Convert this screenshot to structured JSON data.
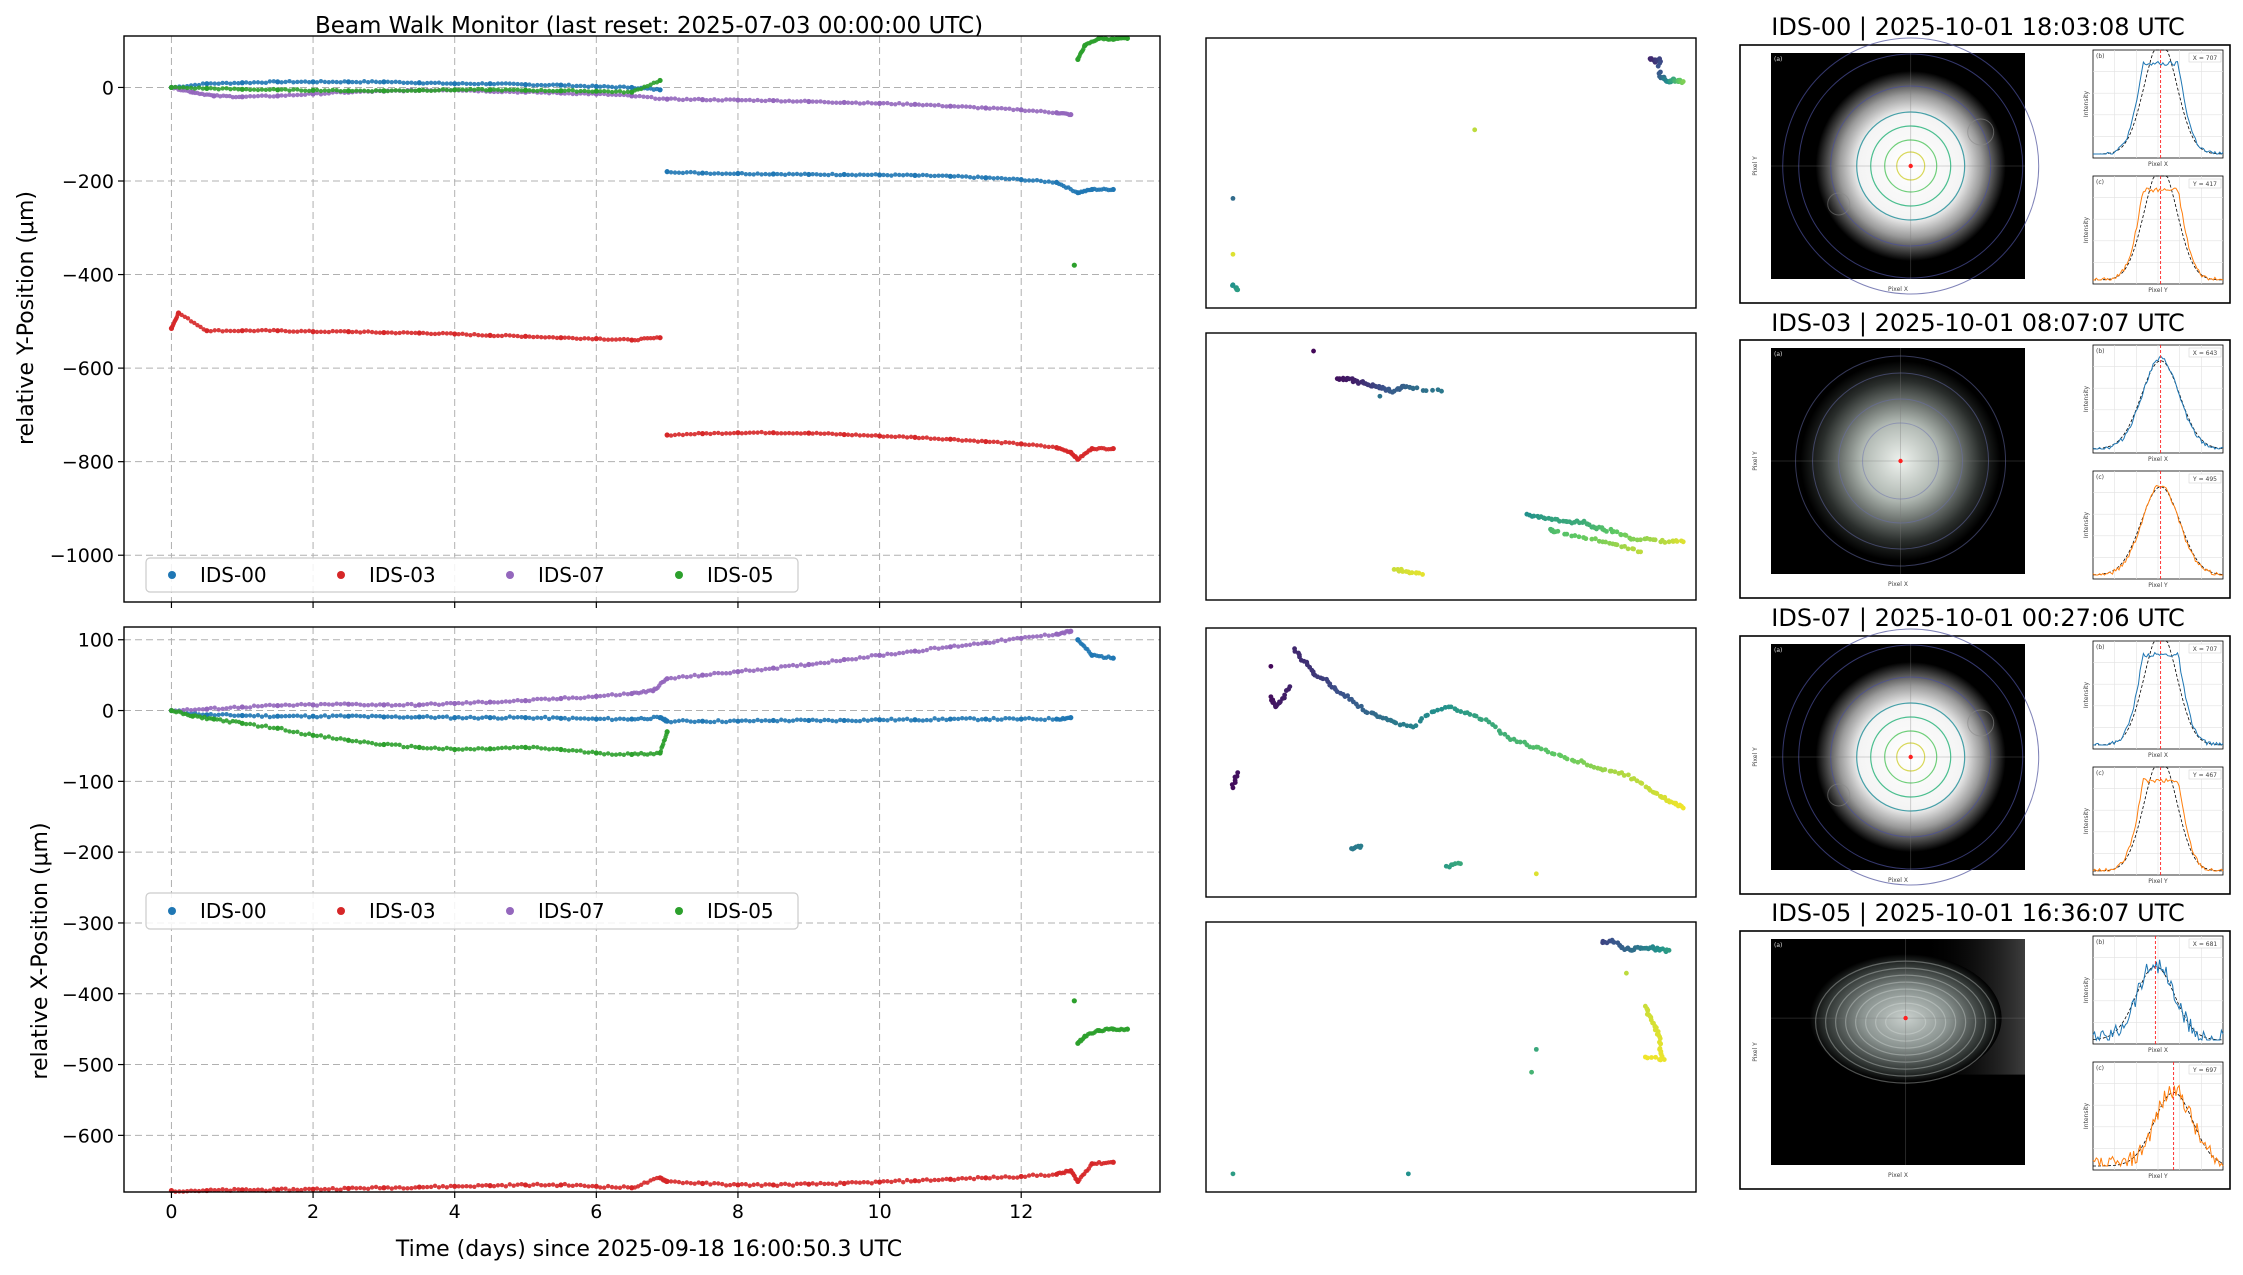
{
  "figure": {
    "title": "Beam Walk Monitor (last reset: 2025-07-03 00:00:00 UTC)",
    "xlabel": "Time (days) since 2025-09-18  16:00:50.3 UTC"
  },
  "colors": {
    "IDS-00": "#1f77b4",
    "IDS-03": "#d62728",
    "IDS-07": "#9467bd",
    "IDS-05": "#2ca02c"
  },
  "chart_data": [
    {
      "id": "y-position",
      "type": "scatter",
      "title": "Beam Walk Monitor (last reset: 2025-07-03 00:00:00 UTC)",
      "xlabel": "",
      "ylabel": "relative Y-Position (μm)",
      "xlim": [
        -0.67,
        13.96
      ],
      "ylim": [
        -1100,
        110
      ],
      "xticks": [
        0,
        2,
        4,
        6,
        8,
        10,
        12
      ],
      "yticks": [
        0,
        -200,
        -400,
        -600,
        -800,
        -1000
      ],
      "ytick_labels": [
        "0",
        "−200",
        "−400",
        "−600",
        "−800",
        "−1000"
      ],
      "grid": true,
      "legend": {
        "position": "lower-left",
        "columns": 4
      },
      "series": [
        {
          "name": "IDS-00",
          "x": [
            0,
            0.5,
            1,
            1.5,
            2,
            2.5,
            3,
            3.5,
            4,
            4.5,
            5,
            5.5,
            6,
            6.5,
            6.9,
            7.0,
            7.5,
            8,
            8.5,
            9,
            9.5,
            10,
            10.5,
            11,
            11.5,
            12,
            12.5,
            12.8,
            13.0,
            13.3
          ],
          "y": [
            0,
            8,
            10,
            12,
            12,
            12,
            12,
            10,
            8,
            8,
            6,
            5,
            2,
            0,
            -5,
            -180,
            -183,
            -184,
            -185,
            -186,
            -186,
            -187,
            -188,
            -190,
            -193,
            -197,
            -203,
            -225,
            -218,
            -218
          ]
        },
        {
          "name": "IDS-03",
          "x": [
            0.0,
            0.1,
            0.5,
            1,
            1.5,
            2,
            2.5,
            3,
            3.5,
            4,
            4.5,
            5,
            5.5,
            6,
            6.5,
            6.9,
            7.0,
            7.5,
            8,
            8.5,
            9,
            9.5,
            10,
            10.5,
            11,
            11.5,
            12,
            12.5,
            12.7,
            12.8,
            13.0,
            13.3
          ],
          "y": [
            -515,
            -482,
            -520,
            -520,
            -520,
            -522,
            -522,
            -524,
            -525,
            -527,
            -530,
            -532,
            -535,
            -537,
            -540,
            -535,
            -743,
            -740,
            -738,
            -738,
            -739,
            -742,
            -745,
            -748,
            -752,
            -757,
            -762,
            -770,
            -780,
            -795,
            -772,
            -772
          ]
        },
        {
          "name": "IDS-07",
          "x": [
            0,
            0.3,
            0.6,
            1,
            1.5,
            2,
            2.5,
            3,
            3.5,
            4,
            4.5,
            5,
            5.5,
            6,
            6.5,
            7,
            7.5,
            8,
            8.5,
            9,
            9.5,
            10,
            10.5,
            11,
            11.5,
            12,
            12.5,
            12.7
          ],
          "y": [
            0,
            -10,
            -18,
            -20,
            -18,
            -14,
            -10,
            -8,
            -6,
            -5,
            -8,
            -10,
            -12,
            -14,
            -18,
            -25,
            -26,
            -27,
            -28,
            -30,
            -32,
            -34,
            -36,
            -40,
            -44,
            -48,
            -54,
            -58
          ]
        },
        {
          "name": "IDS-05",
          "x": [
            0,
            0.5,
            1,
            1.5,
            2,
            2.5,
            3,
            3.5,
            4,
            4.5,
            5,
            5.5,
            6,
            6.5,
            6.9,
            12.75,
            12.8,
            12.9,
            13.1,
            13.3,
            13.5
          ],
          "y": [
            0,
            -2,
            -4,
            -5,
            -6,
            -7,
            -7,
            -6,
            -5,
            -5,
            -6,
            -7,
            -8,
            -10,
            15,
            -380,
            60,
            90,
            105,
            103,
            105
          ]
        }
      ]
    },
    {
      "id": "x-position",
      "type": "scatter",
      "title": "",
      "xlabel": "Time (days) since 2025-09-18  16:00:50.3 UTC",
      "ylabel": "relative X-Position (μm)",
      "xlim": [
        -0.67,
        13.96
      ],
      "ylim": [
        -680,
        118
      ],
      "xticks": [
        0,
        2,
        4,
        6,
        8,
        10,
        12
      ],
      "yticks": [
        100,
        0,
        -100,
        -200,
        -300,
        -400,
        -500,
        -600
      ],
      "ytick_labels": [
        "100",
        "0",
        "−100",
        "−200",
        "−300",
        "−400",
        "−500",
        "−600"
      ],
      "grid": true,
      "legend": {
        "position": "center-left",
        "columns": 4
      },
      "series": [
        {
          "name": "IDS-00",
          "x": [
            0,
            0.5,
            1,
            1.5,
            2,
            2.5,
            3,
            3.5,
            4,
            4.5,
            5,
            5.5,
            6,
            6.5,
            6.9,
            7.0,
            7.5,
            8,
            8.5,
            9,
            9.5,
            10,
            10.5,
            11,
            11.5,
            12,
            12.5,
            12.7,
            12.8,
            13.0,
            13.3
          ],
          "y": [
            0,
            -6,
            -7,
            -8,
            -8,
            -8,
            -9,
            -9,
            -10,
            -10,
            -10,
            -11,
            -12,
            -12,
            -10,
            -15,
            -15,
            -15,
            -14,
            -14,
            -14,
            -13,
            -13,
            -12,
            -12,
            -12,
            -12,
            -10,
            100,
            78,
            74
          ]
        },
        {
          "name": "IDS-03",
          "x": [
            0,
            0.5,
            1,
            1.5,
            2,
            2.5,
            3,
            3.5,
            4,
            4.5,
            5,
            5.5,
            6,
            6.5,
            6.9,
            7.0,
            7.5,
            8,
            8.5,
            9,
            9.5,
            10,
            10.5,
            11,
            11.5,
            12,
            12.5,
            12.7,
            12.8,
            13.0,
            13.3
          ],
          "y": [
            -678,
            -678,
            -677,
            -677,
            -676,
            -675,
            -674,
            -673,
            -672,
            -671,
            -670,
            -670,
            -672,
            -674,
            -660,
            -665,
            -668,
            -670,
            -670,
            -669,
            -668,
            -666,
            -664,
            -662,
            -660,
            -658,
            -655,
            -650,
            -665,
            -640,
            -638
          ]
        },
        {
          "name": "IDS-07",
          "x": [
            0,
            0.5,
            1,
            1.5,
            2,
            2.5,
            3,
            3.5,
            4,
            4.5,
            5,
            5.5,
            6,
            6.5,
            6.8,
            7.0,
            7.5,
            8,
            8.5,
            9,
            9.5,
            10,
            10.5,
            11,
            11.5,
            12,
            12.5,
            12.7
          ],
          "y": [
            0,
            2,
            5,
            7,
            8,
            9,
            8,
            8,
            10,
            12,
            14,
            17,
            20,
            24,
            28,
            45,
            50,
            55,
            60,
            65,
            72,
            78,
            84,
            90,
            96,
            102,
            108,
            112
          ]
        },
        {
          "name": "IDS-05",
          "x": [
            0,
            0.3,
            0.6,
            1,
            1.5,
            2,
            2.5,
            3,
            3.5,
            4,
            4.5,
            5,
            5.5,
            6,
            6.5,
            6.9,
            7.0,
            12.75,
            12.8,
            12.9,
            13.1,
            13.3,
            13.5
          ],
          "y": [
            0,
            -8,
            -12,
            -18,
            -25,
            -35,
            -42,
            -48,
            -52,
            -55,
            -54,
            -52,
            -55,
            -60,
            -62,
            -60,
            -30,
            -410,
            -470,
            -460,
            -452,
            -450,
            -450
          ]
        }
      ]
    },
    {
      "id": "walk-panel-ids-00",
      "type": "scatter",
      "title": "",
      "xlabel": "",
      "ylabel": "",
      "xlim": [
        0,
        1
      ],
      "ylim": [
        0,
        1
      ],
      "colormap": "viridis",
      "series": [
        {
          "name": "",
          "x": [
            0.92,
            0.93,
            0.94,
            0.94,
            0.95,
            0.96,
            0.97,
            0.98,
            0.99,
            0.55,
            0.04,
            0.04,
            0.04,
            0.05
          ],
          "y": [
            0.95,
            0.94,
            0.95,
            0.88,
            0.87,
            0.86,
            0.87,
            0.86,
            0.86,
            0.67,
            0.4,
            0.18,
            0.06,
            0.04
          ],
          "t": [
            0.1,
            0.15,
            0.2,
            0.3,
            0.4,
            0.5,
            0.6,
            0.7,
            0.8,
            0.9,
            0.35,
            0.95,
            0.5,
            0.55
          ]
        }
      ]
    },
    {
      "id": "walk-panel-ids-03",
      "type": "scatter",
      "title": "",
      "xlabel": "",
      "ylabel": "",
      "xlim": [
        0,
        1
      ],
      "ylim": [
        0,
        1
      ],
      "colormap": "viridis",
      "series": [
        {
          "name": "",
          "x": [
            0.21,
            0.26,
            0.28,
            0.3,
            0.32,
            0.34,
            0.36,
            0.38,
            0.4,
            0.42,
            0.48,
            0.35,
            0.66,
            0.69,
            0.72,
            0.75,
            0.78,
            0.8,
            0.82,
            0.85,
            0.88,
            0.92,
            0.96,
            0.99,
            0.71,
            0.72,
            0.77,
            0.82,
            0.86,
            0.9,
            0.38,
            0.41,
            0.44
          ],
          "y": [
            0.96,
            0.85,
            0.85,
            0.84,
            0.83,
            0.82,
            0.81,
            0.8,
            0.82,
            0.81,
            0.8,
            0.78,
            0.31,
            0.3,
            0.29,
            0.28,
            0.28,
            0.26,
            0.25,
            0.24,
            0.21,
            0.21,
            0.2,
            0.2,
            0.25,
            0.24,
            0.22,
            0.2,
            0.18,
            0.16,
            0.09,
            0.08,
            0.07
          ],
          "t": [
            0.02,
            0.05,
            0.07,
            0.1,
            0.15,
            0.2,
            0.25,
            0.3,
            0.3,
            0.35,
            0.4,
            0.38,
            0.5,
            0.55,
            0.58,
            0.6,
            0.62,
            0.65,
            0.7,
            0.75,
            0.8,
            0.85,
            0.9,
            0.95,
            0.66,
            0.7,
            0.75,
            0.8,
            0.85,
            0.9,
            0.92,
            0.94,
            0.96
          ]
        }
      ]
    },
    {
      "id": "walk-panel-ids-07",
      "type": "scatter",
      "title": "",
      "xlabel": "",
      "ylabel": "",
      "xlim": [
        0,
        1
      ],
      "ylim": [
        0,
        1
      ],
      "colormap": "viridis",
      "series": [
        {
          "name": "",
          "x": [
            0.12,
            0.12,
            0.13,
            0.14,
            0.16,
            0.17,
            0.19,
            0.21,
            0.24,
            0.26,
            0.29,
            0.32,
            0.35,
            0.38,
            0.42,
            0.46,
            0.5,
            0.54,
            0.58,
            0.62,
            0.66,
            0.7,
            0.74,
            0.78,
            0.82,
            0.86,
            0.9,
            0.93,
            0.95,
            0.97,
            0.99,
            0.05,
            0.04,
            0.29,
            0.31,
            0.49,
            0.52,
            0.68
          ],
          "y": [
            0.88,
            0.76,
            0.72,
            0.74,
            0.8,
            0.95,
            0.9,
            0.85,
            0.82,
            0.78,
            0.75,
            0.7,
            0.68,
            0.66,
            0.64,
            0.7,
            0.72,
            0.69,
            0.66,
            0.6,
            0.57,
            0.55,
            0.52,
            0.5,
            0.47,
            0.46,
            0.42,
            0.38,
            0.36,
            0.34,
            0.32,
            0.46,
            0.4,
            0.16,
            0.17,
            0.09,
            0.1,
            0.06
          ],
          "t": [
            0.02,
            0.04,
            0.06,
            0.08,
            0.1,
            0.12,
            0.14,
            0.16,
            0.2,
            0.24,
            0.28,
            0.32,
            0.36,
            0.4,
            0.44,
            0.48,
            0.52,
            0.56,
            0.6,
            0.64,
            0.68,
            0.72,
            0.76,
            0.8,
            0.84,
            0.88,
            0.9,
            0.92,
            0.94,
            0.96,
            0.98,
            0.05,
            0.03,
            0.4,
            0.42,
            0.55,
            0.6,
            0.95
          ]
        }
      ]
    },
    {
      "id": "walk-panel-ids-05",
      "type": "scatter",
      "title": "",
      "xlabel": "",
      "ylabel": "",
      "xlim": [
        0,
        1
      ],
      "ylim": [
        0,
        1
      ],
      "colormap": "viridis",
      "series": [
        {
          "name": "",
          "x": [
            0.82,
            0.84,
            0.86,
            0.88,
            0.9,
            0.92,
            0.94,
            0.96,
            0.87,
            0.91,
            0.92,
            0.93,
            0.94,
            0.94,
            0.95,
            0.91,
            0.68,
            0.67,
            0.41,
            0.04
          ],
          "y": [
            0.95,
            0.96,
            0.93,
            0.92,
            0.93,
            0.93,
            0.92,
            0.92,
            0.83,
            0.7,
            0.66,
            0.62,
            0.58,
            0.53,
            0.49,
            0.5,
            0.53,
            0.44,
            0.04,
            0.04
          ],
          "t": [
            0.2,
            0.25,
            0.3,
            0.35,
            0.4,
            0.45,
            0.5,
            0.55,
            0.9,
            0.92,
            0.93,
            0.94,
            0.95,
            0.96,
            0.97,
            0.98,
            0.6,
            0.65,
            0.5,
            0.55
          ]
        }
      ]
    }
  ],
  "thumbnails": [
    {
      "title": "IDS-00 | 2025-10-01 18:03:08 UTC",
      "label_a": "(a)",
      "label_b": "(b)",
      "label_c": "(c)",
      "legend_x": "X = 707",
      "legend_y": "Y = 417",
      "img_xlabel": "Pixel X",
      "img_ylabel": "Pixel Y",
      "px_xlabel": "Pixel X",
      "py_xlabel": "Pixel Y",
      "prof_ylabel": "Intensity",
      "variant": "saturated"
    },
    {
      "title": "IDS-03 | 2025-10-01 08:07:07 UTC",
      "label_a": "(a)",
      "label_b": "(b)",
      "label_c": "(c)",
      "legend_x": "X = 643",
      "legend_y": "Y = 495",
      "img_xlabel": "Pixel X",
      "img_ylabel": "Pixel Y",
      "px_xlabel": "Pixel X",
      "py_xlabel": "Pixel Y",
      "prof_ylabel": "Intensity",
      "variant": "gaussian"
    },
    {
      "title": "IDS-07 | 2025-10-01 00:27:06 UTC",
      "label_a": "(a)",
      "label_b": "(b)",
      "label_c": "(c)",
      "legend_x": "X = 707",
      "legend_y": "Y = 467",
      "img_xlabel": "Pixel X",
      "img_ylabel": "Pixel Y",
      "px_xlabel": "Pixel X",
      "py_xlabel": "Pixel Y",
      "prof_ylabel": "Intensity",
      "variant": "saturated"
    },
    {
      "title": "IDS-05 | 2025-10-01 16:36:07 UTC",
      "label_a": "(a)",
      "label_b": "(b)",
      "label_c": "(c)",
      "legend_x": "X = 681",
      "legend_y": "Y = 697",
      "img_xlabel": "Pixel X",
      "img_ylabel": "Pixel Y",
      "px_xlabel": "Pixel X",
      "py_xlabel": "Pixel Y",
      "prof_ylabel": "Intensity",
      "variant": "noisy"
    }
  ]
}
